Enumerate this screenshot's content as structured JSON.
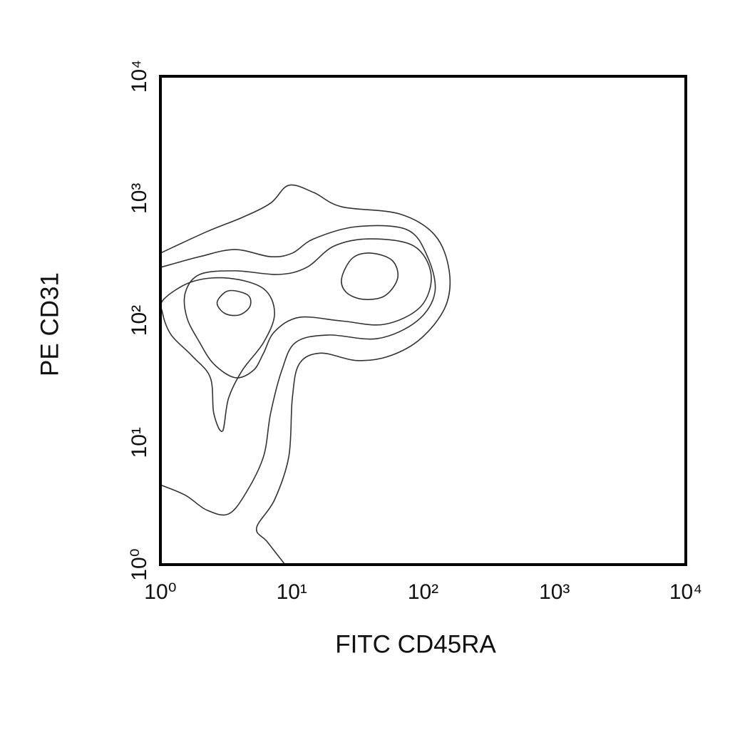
{
  "chart_data": {
    "type": "contour",
    "x_label": "FITC CD45RA",
    "y_label": "PE CD31",
    "xscale": "log",
    "yscale": "log",
    "xlim": [
      1,
      10000
    ],
    "ylim": [
      1,
      10000
    ],
    "xticks": [
      {
        "value": 1,
        "label": "10⁰"
      },
      {
        "value": 10,
        "label": "10¹"
      },
      {
        "value": 100,
        "label": "10²"
      },
      {
        "value": 1000,
        "label": "10³"
      },
      {
        "value": 10000,
        "label": "10⁴"
      }
    ],
    "yticks": [
      {
        "value": 1,
        "label": "10⁰"
      },
      {
        "value": 10,
        "label": "10¹"
      },
      {
        "value": 100,
        "label": "10²"
      },
      {
        "value": 1000,
        "label": "10³"
      },
      {
        "value": 10000,
        "label": "10⁴"
      }
    ],
    "line_color": "#333333",
    "contours": [
      {
        "closed": false,
        "x": [
          1,
          2.25,
          4.2,
          6.9,
          9.5,
          14.7,
          24,
          66,
          123,
          158,
          148,
          96,
          55,
          31,
          16.6,
          11.4,
          10.1,
          9.5,
          7.4,
          5.4,
          6.5,
          8.9
        ],
        "y": [
          356,
          533,
          698,
          914,
          1279,
          1117,
          853,
          746,
          499,
          255,
          130,
          71,
          51,
          47,
          54,
          44,
          23,
          7.7,
          3.4,
          2.0,
          1.54,
          1
        ]
      },
      {
        "closed": false,
        "x": [
          1,
          1.99,
          3.7,
          6.9,
          10.1,
          14.7,
          31,
          75,
          108,
          123,
          90,
          45,
          18.9,
          10.7,
          8.4,
          6.9,
          6.1,
          4.5,
          3.3,
          2.25,
          1.55,
          1
        ],
        "y": [
          272,
          333,
          381,
          333,
          356,
          466,
          586,
          555,
          333,
          170,
          99,
          71,
          76,
          66,
          39,
          17.3,
          7.7,
          3.9,
          2.6,
          2.8,
          3.7,
          4.5
        ]
      },
      {
        "closed": true,
        "x": [
          1.55,
          1.99,
          3.7,
          7.9,
          13,
          21,
          40,
          85,
          115,
          96,
          51,
          24,
          11.4,
          7.4,
          6.1,
          5.1,
          3.7,
          2.55,
          1.99,
          1.59
        ],
        "y": [
          170,
          238,
          255,
          238,
          272,
          407,
          466,
          407,
          238,
          130,
          93,
          99,
          106,
          81,
          54,
          39,
          34,
          44,
          66,
          106
        ]
      },
      {
        "closed": true,
        "x": [
          1.06,
          1.75,
          3.3,
          6.1,
          7.4,
          6.1,
          4.2,
          3.3,
          2.97,
          2.55,
          2.4,
          1.75,
          1.21,
          1.04
        ],
        "y": [
          149,
          208,
          222,
          182,
          114,
          66,
          39,
          23,
          12.4,
          17.3,
          34,
          51,
          76,
          114
        ]
      },
      {
        "closed": true,
        "x": [
          24,
          29,
          40,
          58,
          64,
          51,
          35,
          26
        ],
        "y": [
          222,
          324,
          356,
          311,
          222,
          159,
          149,
          170
        ]
      },
      {
        "closed": true,
        "x": [
          2.7,
          3.1,
          3.7,
          4.7,
          4.8,
          4.0,
          3.1
        ],
        "y": [
          139,
          170,
          175,
          159,
          130,
          111,
          114
        ]
      }
    ]
  }
}
